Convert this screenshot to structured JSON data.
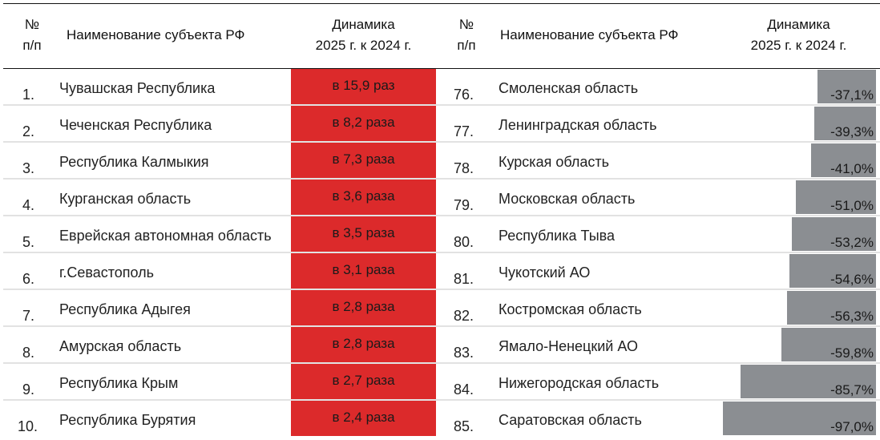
{
  "header": {
    "no_line1": "№",
    "no_line2": "п/п",
    "name": "Наименование субъекта РФ",
    "dyn_line1": "Динамика",
    "dyn_line2": "2025 г. к 2024 г."
  },
  "colors": {
    "top_fill": "#dc2a2b",
    "bottom_fill": "#8b8e92",
    "separator": "#e2e2e2"
  },
  "left_table": [
    {
      "num": "1.",
      "name": "Чувашская Республика",
      "value": "в 15,9 раз"
    },
    {
      "num": "2.",
      "name": "Чеченская Республика",
      "value": "в 8,2 раза"
    },
    {
      "num": "3.",
      "name": "Республика Калмыкия",
      "value": "в 7,3 раза"
    },
    {
      "num": "4.",
      "name": "Курганская область",
      "value": "в 3,6 раза"
    },
    {
      "num": "5.",
      "name": "Еврейская автономная область",
      "value": "в 3,5 раза"
    },
    {
      "num": "6.",
      "name": "г.Севастополь",
      "value": "в 3,1 раза"
    },
    {
      "num": "7.",
      "name": "Республика Адыгея",
      "value": "в 2,8 раза"
    },
    {
      "num": "8.",
      "name": "Амурская область",
      "value": "в 2,8 раза"
    },
    {
      "num": "9.",
      "name": "Республика Крым",
      "value": "в 2,7 раза"
    },
    {
      "num": "10.",
      "name": "Республика Бурятия",
      "value": "в 2,4 раза"
    }
  ],
  "right_table": [
    {
      "num": "76.",
      "name": "Смоленская область",
      "value": "-37,1%"
    },
    {
      "num": "77.",
      "name": "Ленинградская область",
      "value": "-39,3%"
    },
    {
      "num": "78.",
      "name": "Курская область",
      "value": "-41,0%"
    },
    {
      "num": "79.",
      "name": "Московская область",
      "value": "-51,0%"
    },
    {
      "num": "80.",
      "name": "Республика Тыва",
      "value": "-53,2%"
    },
    {
      "num": "81.",
      "name": "Чукотский АО",
      "value": "-54,6%"
    },
    {
      "num": "82.",
      "name": "Костромская область",
      "value": "-56,3%"
    },
    {
      "num": "83.",
      "name": "Ямало-Ненецкий АО",
      "value": "-59,8%"
    },
    {
      "num": "84.",
      "name": "Нижегородская область",
      "value": "-85,7%"
    },
    {
      "num": "85.",
      "name": "Саратовская область",
      "value": "-97,0%"
    }
  ],
  "chart_data": {
    "type": "table",
    "title": "",
    "columns": [
      "№ п/п",
      "Наименование субъекта РФ",
      "Динамика 2025 г. к 2024 г."
    ],
    "top_growth": {
      "categories": [
        "Чувашская Республика",
        "Чеченская Республика",
        "Республика Калмыкия",
        "Курганская область",
        "Еврейская автономная область",
        "г.Севастополь",
        "Республика Адыгея",
        "Амурская область",
        "Республика Крым",
        "Республика Бурятия"
      ],
      "ranks": [
        1,
        2,
        3,
        4,
        5,
        6,
        7,
        8,
        9,
        10
      ],
      "values_times": [
        15.9,
        8.2,
        7.3,
        3.6,
        3.5,
        3.1,
        2.8,
        2.8,
        2.7,
        2.4
      ]
    },
    "bottom_decline": {
      "categories": [
        "Смоленская область",
        "Ленинградская область",
        "Курская область",
        "Московская область",
        "Республика Тыва",
        "Чукотский АО",
        "Костромская область",
        "Ямало-Ненецкий АО",
        "Нижегородская область",
        "Саратовская область"
      ],
      "ranks": [
        76,
        77,
        78,
        79,
        80,
        81,
        82,
        83,
        84,
        85
      ],
      "values_percent": [
        -37.1,
        -39.3,
        -41.0,
        -51.0,
        -53.2,
        -54.6,
        -56.3,
        -59.8,
        -85.7,
        -97.0
      ]
    }
  }
}
